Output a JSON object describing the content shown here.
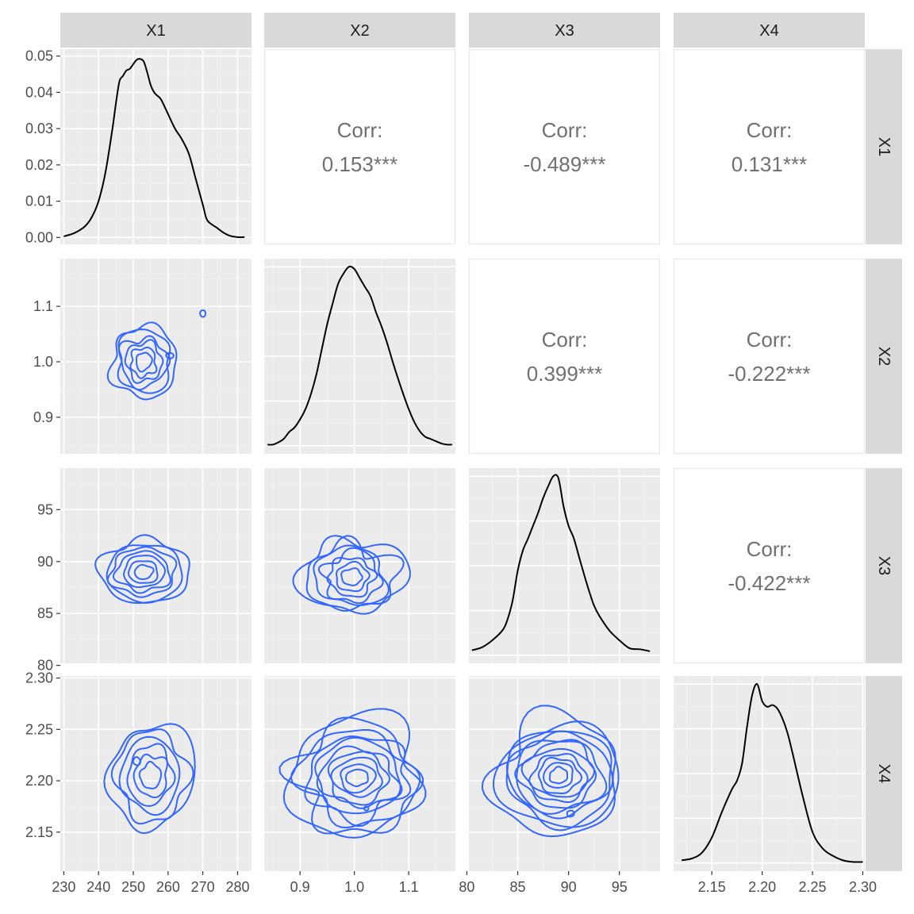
{
  "chart_data": {
    "type": "scatter-matrix",
    "variables": [
      "X1",
      "X2",
      "X3",
      "X4"
    ],
    "colors": {
      "panel_bg": "#ebebeb",
      "grid_major": "#ffffff",
      "grid_minor": "#f3f3f3",
      "strip_bg": "#d9d9d9",
      "contour": "#3366ff",
      "density": "#000000",
      "corr_text": "#707070",
      "corr_border": "#ebebeb"
    },
    "axes": {
      "X1": {
        "limits": [
          229,
          284
        ],
        "ticks": [
          230,
          240,
          250,
          260,
          270,
          280
        ],
        "labels": [
          "230",
          "240",
          "250",
          "260",
          "270",
          "280"
        ]
      },
      "X2": {
        "limits": [
          0.834,
          1.186
        ],
        "ticks": [
          0.9,
          1.0,
          1.1
        ],
        "labels": [
          "0.9",
          "1.0",
          "1.1"
        ]
      },
      "X3": {
        "limits": [
          80.2,
          99.0
        ],
        "ticks": [
          80,
          85,
          90,
          95
        ],
        "labels": [
          "80",
          "85",
          "90",
          "95"
        ]
      },
      "X4": {
        "limits": [
          2.112,
          2.302
        ],
        "ticks": [
          2.15,
          2.2,
          2.25,
          2.3
        ],
        "labels": [
          "2.15",
          "2.20",
          "2.25",
          "2.30"
        ]
      }
    },
    "density_axis": {
      "limits": [
        -0.0019,
        0.0519
      ],
      "ticks": [
        0,
        0.01,
        0.02,
        0.03,
        0.04,
        0.05
      ],
      "labels": [
        "0.00",
        "0.01",
        "0.02",
        "0.03",
        "0.04",
        "0.05"
      ]
    },
    "densities": {
      "X1": {
        "x": [
          230,
          233,
          236,
          238,
          240,
          242,
          244,
          245,
          246,
          247,
          248,
          249,
          250,
          251,
          252,
          253,
          254,
          255,
          256,
          257,
          258,
          260,
          262,
          264,
          266,
          268,
          270,
          271,
          272,
          274,
          276,
          278,
          280,
          282
        ],
        "y": [
          0.0003,
          0.0012,
          0.003,
          0.0055,
          0.01,
          0.018,
          0.03,
          0.037,
          0.043,
          0.0445,
          0.046,
          0.0465,
          0.0478,
          0.049,
          0.0492,
          0.0485,
          0.0455,
          0.042,
          0.04,
          0.039,
          0.038,
          0.034,
          0.03,
          0.027,
          0.023,
          0.016,
          0.009,
          0.0053,
          0.004,
          0.0027,
          0.0013,
          0.0004,
          0.0001,
          0.0001
        ]
      },
      "X2": {
        "x": [
          0.84,
          0.85,
          0.86,
          0.87,
          0.88,
          0.89,
          0.9,
          0.91,
          0.92,
          0.93,
          0.94,
          0.95,
          0.96,
          0.97,
          0.98,
          0.99,
          1.0,
          1.01,
          1.02,
          1.03,
          1.04,
          1.05,
          1.06,
          1.07,
          1.08,
          1.09,
          1.1,
          1.11,
          1.12,
          1.13,
          1.14,
          1.15,
          1.16,
          1.17,
          1.18
        ],
        "y": [
          0.1,
          0.1,
          0.3,
          0.6,
          1.2,
          1.6,
          2.3,
          3.2,
          4.5,
          6.2,
          8.4,
          10.6,
          12.4,
          14.1,
          15.0,
          15.6,
          15.4,
          14.6,
          13.8,
          13.0,
          11.6,
          10.4,
          9.0,
          7.4,
          5.9,
          4.5,
          3.2,
          2.1,
          1.3,
          0.8,
          0.6,
          0.4,
          0.2,
          0.1,
          0.1
        ]
      },
      "X3": {
        "x": [
          80.5,
          81.5,
          82.5,
          83.5,
          84.0,
          84.5,
          85.0,
          85.5,
          86.0,
          86.5,
          87.0,
          87.5,
          88.0,
          88.5,
          89.0,
          89.5,
          90.0,
          90.5,
          91.0,
          91.5,
          92.0,
          92.5,
          93.0,
          94.0,
          95.0,
          96.0,
          97.0,
          98.0
        ],
        "y": [
          0.005,
          0.008,
          0.015,
          0.025,
          0.036,
          0.055,
          0.085,
          0.105,
          0.117,
          0.13,
          0.143,
          0.158,
          0.17,
          0.18,
          0.178,
          0.15,
          0.13,
          0.118,
          0.1,
          0.082,
          0.065,
          0.05,
          0.04,
          0.025,
          0.015,
          0.007,
          0.006,
          0.004
        ]
      },
      "X4": {
        "x": [
          2.12,
          2.13,
          2.14,
          2.15,
          2.16,
          2.17,
          2.175,
          2.18,
          2.185,
          2.19,
          2.195,
          2.2,
          2.205,
          2.21,
          2.215,
          2.22,
          2.225,
          2.23,
          2.24,
          2.25,
          2.26,
          2.27,
          2.28,
          2.29,
          2.3
        ],
        "y": [
          0.5,
          0.8,
          1.8,
          4.5,
          9.0,
          13.0,
          14.5,
          17.5,
          24.0,
          29.5,
          31.5,
          28.5,
          27.5,
          27.8,
          27.2,
          25.5,
          23.0,
          19.5,
          12.0,
          5.5,
          2.6,
          1.3,
          0.5,
          0.2,
          0.2
        ]
      }
    },
    "correlations": [
      {
        "row": 0,
        "col": 1,
        "label": "Corr:",
        "value": "0.153***"
      },
      {
        "row": 0,
        "col": 2,
        "label": "Corr:",
        "value": "-0.489***"
      },
      {
        "row": 0,
        "col": 3,
        "label": "Corr:",
        "value": "0.131***"
      },
      {
        "row": 1,
        "col": 2,
        "label": "Corr:",
        "value": "0.399***"
      },
      {
        "row": 1,
        "col": 3,
        "label": "Corr:",
        "value": "-0.222***"
      },
      {
        "row": 2,
        "col": 3,
        "label": "Corr:",
        "value": "-0.422***"
      }
    ],
    "contours": {
      "X1_X2": {
        "center": [
          253,
          1.0
        ],
        "spread": [
          9.5,
          0.065
        ],
        "angle": 0.05,
        "levels": 6,
        "irregularity": 0.11,
        "seed": 3,
        "extra_blobs": [
          [
            270,
            1.087,
            0.8,
            0.006
          ],
          [
            260.5,
            1.011,
            1.1,
            0.005
          ]
        ]
      },
      "X1_X3": {
        "center": [
          253,
          89.0
        ],
        "spread": [
          12.5,
          3.2
        ],
        "angle": -0.45,
        "levels": 7,
        "irregularity": 0.07,
        "seed": 7,
        "extra_blobs": []
      },
      "X2_X3": {
        "center": [
          0.995,
          88.5
        ],
        "spread": [
          0.09,
          3.8
        ],
        "angle": 0.25,
        "levels": 7,
        "irregularity": 0.12,
        "seed": 11,
        "extra_blobs": []
      },
      "X1_X4": {
        "center": [
          255,
          2.205
        ],
        "spread": [
          12.0,
          0.052
        ],
        "angle": 0.0,
        "levels": 6,
        "irregularity": 0.09,
        "seed": 17,
        "extra_blobs": [
          [
            251,
            2.219,
            1.0,
            0.004
          ]
        ]
      },
      "X2_X4": {
        "center": [
          1.005,
          2.203
        ],
        "spread": [
          0.13,
          0.055
        ],
        "angle": 0.0,
        "levels": 10,
        "irregularity": 0.1,
        "seed": 23,
        "extra_blobs": [
          [
            1.022,
            2.173,
            0.004,
            0.002
          ]
        ]
      },
      "X3_X4": {
        "center": [
          89.0,
          2.205
        ],
        "spread": [
          6.5,
          0.055
        ],
        "angle": -0.6,
        "levels": 11,
        "irregularity": 0.08,
        "seed": 29,
        "extra_blobs": [
          [
            90.2,
            2.168,
            0.35,
            0.003
          ]
        ]
      }
    }
  }
}
